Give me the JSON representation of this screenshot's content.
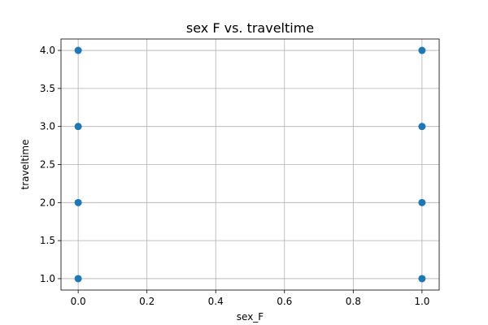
{
  "chart_data": {
    "type": "scatter",
    "title": "sex F vs. traveltime",
    "xlabel": "sex_F",
    "ylabel": "traveltime",
    "xlim": [
      -0.05,
      1.05
    ],
    "ylim": [
      0.85,
      4.15
    ],
    "grid": true,
    "marker_color": "#1f77b4",
    "xticks": [
      0.0,
      0.2,
      0.4,
      0.6,
      0.8,
      1.0
    ],
    "xtick_labels": [
      "0.0",
      "0.2",
      "0.4",
      "0.6",
      "0.8",
      "1.0"
    ],
    "yticks": [
      1.0,
      1.5,
      2.0,
      2.5,
      3.0,
      3.5,
      4.0
    ],
    "ytick_labels": [
      "1.0",
      "1.5",
      "2.0",
      "2.5",
      "3.0",
      "3.5",
      "4.0"
    ],
    "points": [
      {
        "x": 0,
        "y": 1
      },
      {
        "x": 0,
        "y": 2
      },
      {
        "x": 0,
        "y": 3
      },
      {
        "x": 0,
        "y": 4
      },
      {
        "x": 1,
        "y": 1
      },
      {
        "x": 1,
        "y": 2
      },
      {
        "x": 1,
        "y": 3
      },
      {
        "x": 1,
        "y": 4
      }
    ]
  }
}
